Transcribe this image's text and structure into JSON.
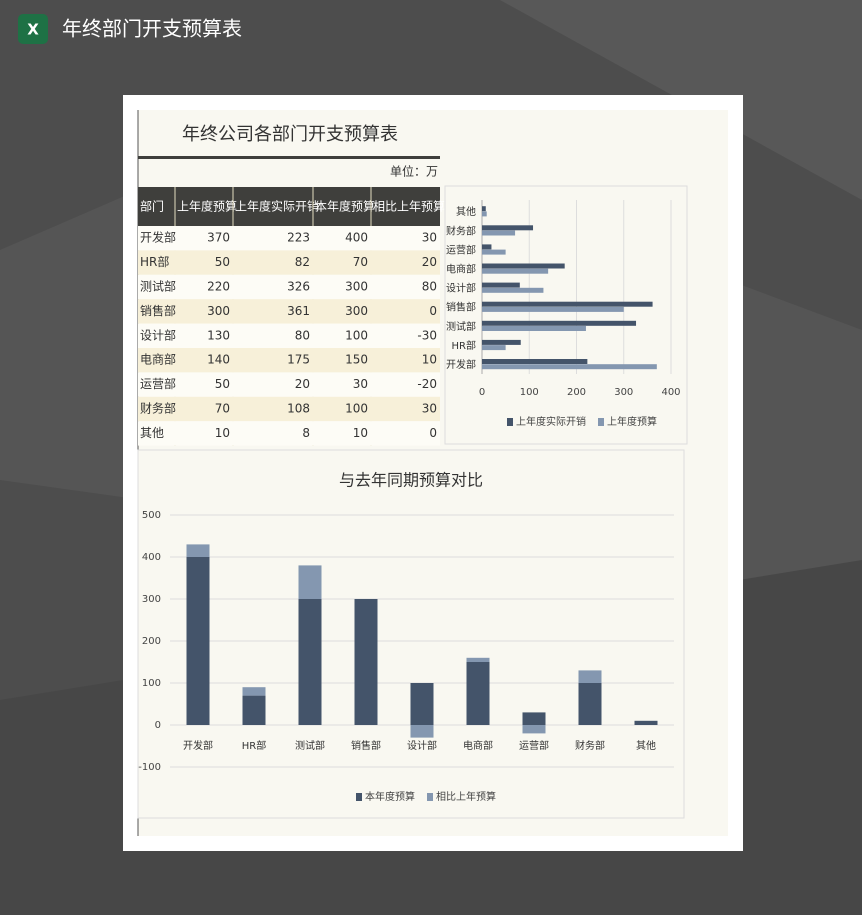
{
  "header": {
    "title": "年终部门开支预算表"
  },
  "sheet": {
    "title": "年终公司各部门开支预算表",
    "unit": "单位：万",
    "table": {
      "columns": [
        "部门",
        "上年度预算",
        "上年度实际开销",
        "本年度预算",
        "相比上年预算"
      ],
      "rows": [
        [
          "开发部",
          370,
          223,
          400,
          30
        ],
        [
          "HR部",
          50,
          82,
          70,
          20
        ],
        [
          "测试部",
          220,
          326,
          300,
          80
        ],
        [
          "销售部",
          300,
          361,
          300,
          0
        ],
        [
          "设计部",
          130,
          80,
          100,
          -30
        ],
        [
          "电商部",
          140,
          175,
          150,
          10
        ],
        [
          "运营部",
          50,
          20,
          30,
          -20
        ],
        [
          "财务部",
          70,
          108,
          100,
          30
        ],
        [
          "其他",
          10,
          8,
          10,
          0
        ]
      ]
    }
  },
  "chart_data": [
    {
      "type": "hbar",
      "categories": [
        "开发部",
        "HR部",
        "测试部",
        "销售部",
        "设计部",
        "电商部",
        "运营部",
        "财务部",
        "其他"
      ],
      "series": [
        {
          "name": "上年度实际开销",
          "color": "#44546a",
          "values": [
            223,
            82,
            326,
            361,
            80,
            175,
            20,
            108,
            8
          ]
        },
        {
          "name": "上年度预算",
          "color": "#8497b0",
          "values": [
            370,
            50,
            220,
            300,
            130,
            140,
            50,
            70,
            10
          ]
        }
      ],
      "xlim": [
        0,
        400
      ],
      "xticks": [
        0,
        100,
        200,
        300,
        400
      ],
      "grid": true,
      "legend": "bottom"
    },
    {
      "type": "stacked_bar",
      "title": "与去年同期预算对比",
      "categories": [
        "开发部",
        "HR部",
        "测试部",
        "销售部",
        "设计部",
        "电商部",
        "运营部",
        "财务部",
        "其他"
      ],
      "series": [
        {
          "name": "本年度预算",
          "color": "#44546a",
          "values": [
            400,
            70,
            300,
            300,
            100,
            150,
            30,
            100,
            10
          ]
        },
        {
          "name": "相比上年预算",
          "color": "#8497b0",
          "values": [
            30,
            20,
            80,
            0,
            -30,
            10,
            -20,
            30,
            0
          ]
        }
      ],
      "ylim": [
        -100,
        500
      ],
      "yticks": [
        -100,
        0,
        100,
        200,
        300,
        400,
        500
      ],
      "grid": true,
      "legend": "bottom"
    }
  ]
}
